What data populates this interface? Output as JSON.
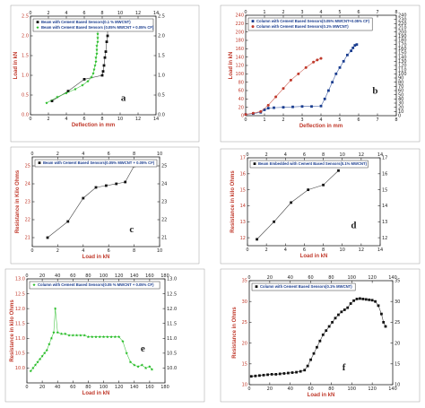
{
  "chart_data": [
    {
      "id": "a",
      "type": "scatter",
      "panel_label": "a",
      "xlabel": "Deflection in mm",
      "ylabel": "Load in kN",
      "xlim": [
        0,
        14
      ],
      "ylim": [
        0,
        2.5
      ],
      "xticks": [
        0,
        2,
        4,
        6,
        8,
        10,
        12,
        14
      ],
      "yticks": [
        0.0,
        0.5,
        1.0,
        1.5,
        2.0,
        2.5
      ],
      "ytick_labels": [
        "0.0",
        "0.5",
        "1.0",
        "1.5",
        "2.0",
        "2.5"
      ],
      "top_ticks": [
        0,
        2,
        4,
        6,
        8,
        10,
        12,
        14
      ],
      "right_ticks": [
        0.0,
        0.5,
        1.0,
        1.5,
        2.0,
        2.5
      ],
      "right_tick_labels": [
        "0.0",
        "0.5",
        "1.0",
        "1.5",
        "2.0",
        "2.5"
      ],
      "legend": [
        {
          "label": "Beam with Cement Based Sensors(0.1 % MWCNT)",
          "color": "#111111"
        },
        {
          "label": "Beam with Cement Based Sensors (0.05% MWCNT + 0.05% CF)",
          "color": "#22bb22"
        }
      ],
      "series": [
        {
          "name": "Beam with Cement Based Sensors(0.1 % MWCNT)",
          "color": "#111111",
          "marker": "square",
          "x": [
            2.4,
            4.2,
            6.0,
            8.0,
            8.1,
            8.2,
            8.3,
            8.4,
            8.5,
            8.6,
            8.6
          ],
          "y": [
            0.35,
            0.6,
            0.9,
            1.0,
            1.1,
            1.25,
            1.45,
            1.6,
            1.85,
            2.0,
            2.15
          ]
        },
        {
          "name": "Beam with Cement Based Sensors (0.05% MWCNT + 0.05% CF)",
          "color": "#22bb22",
          "marker": "star",
          "x": [
            1.8,
            3.0,
            4.0,
            5.0,
            5.8,
            6.4,
            6.8,
            7.0,
            7.1,
            7.2,
            7.3,
            7.3,
            7.4,
            7.4,
            7.4,
            7.5,
            7.5,
            7.5,
            7.5
          ],
          "y": [
            0.3,
            0.45,
            0.55,
            0.65,
            0.75,
            0.85,
            0.95,
            1.05,
            1.15,
            1.25,
            1.35,
            1.45,
            1.55,
            1.65,
            1.75,
            1.85,
            1.95,
            2.05,
            2.2
          ]
        }
      ]
    },
    {
      "id": "b",
      "type": "scatter",
      "panel_label": "b",
      "xlabel": "Deflection in mm",
      "ylabel": "Load in kN",
      "xlim": [
        0,
        8
      ],
      "ylim": [
        0,
        240
      ],
      "xticks": [
        0,
        1,
        2,
        3,
        4,
        5,
        6,
        7,
        8
      ],
      "yticks": [
        0,
        20,
        40,
        60,
        80,
        100,
        120,
        140,
        160,
        180,
        200,
        220,
        240
      ],
      "ytick_labels": [
        "0",
        "20",
        "40",
        "60",
        "80",
        "100",
        "120",
        "140",
        "160",
        "180",
        "200",
        "220",
        "240"
      ],
      "top_ticks": [
        0,
        1,
        2,
        3,
        4,
        5,
        6,
        7,
        8
      ],
      "right_ticks": [
        0,
        10,
        20,
        30,
        40,
        50,
        60,
        70,
        80,
        90,
        100,
        110,
        120,
        130,
        140,
        150,
        160,
        170,
        180,
        190,
        200,
        210,
        220,
        230,
        240
      ],
      "right_tick_labels": [
        "0",
        "10",
        "20",
        "30",
        "40",
        "50",
        "60",
        "70",
        "80",
        "90",
        "100",
        "110",
        "120",
        "130",
        "140",
        "150",
        "160",
        "170",
        "180",
        "190",
        "200",
        "210",
        "220",
        "230",
        "240"
      ],
      "legend": [
        {
          "label": "Column with Cement Based Sensors(0.05% MWCNT+0.05% CF)",
          "color": "#1a3d8f"
        },
        {
          "label": "Column with Cement Based Sensors(0.1% MWCNT)",
          "color": "#c0392b"
        }
      ],
      "series": [
        {
          "name": "Column with Cement Based Sensors(0.05% MWCNT+0.05% CF)",
          "color": "#1a3d8f",
          "marker": "square",
          "x": [
            0.0,
            0.4,
            0.8,
            1.0,
            1.2,
            1.5,
            2.0,
            2.5,
            3.0,
            3.5,
            4.0,
            4.2,
            4.4,
            4.6,
            4.8,
            5.0,
            5.2,
            5.4,
            5.6,
            5.7,
            5.8,
            5.9
          ],
          "y": [
            3,
            5,
            8,
            14,
            18,
            19,
            20,
            21,
            22,
            22,
            23,
            40,
            60,
            80,
            100,
            115,
            130,
            145,
            155,
            162,
            168,
            170
          ]
        },
        {
          "name": "Column with Cement Based Sensors(0.1% MWCNT)",
          "color": "#c0392b",
          "marker": "circle",
          "x": [
            0.0,
            0.4,
            0.8,
            1.2,
            1.6,
            2.0,
            2.4,
            2.8,
            3.2,
            3.6,
            3.8,
            4.0
          ],
          "y": [
            3,
            6,
            10,
            25,
            45,
            65,
            85,
            100,
            115,
            128,
            133,
            137
          ]
        }
      ]
    },
    {
      "id": "c",
      "type": "line",
      "panel_label": "c",
      "xlabel": "Load in kN",
      "ylabel": "Resistance in Kilo Ohms",
      "xlim": [
        0,
        10
      ],
      "ylim": [
        20.5,
        25.5
      ],
      "xticks": [
        0,
        2,
        4,
        6,
        8,
        10
      ],
      "yticks": [
        21,
        22,
        23,
        24,
        25
      ],
      "ytick_labels": [
        "21",
        "22",
        "23",
        "24",
        "25"
      ],
      "top_ticks": [
        0,
        2,
        4,
        6,
        8,
        10
      ],
      "right_ticks": [
        21,
        22,
        23,
        24,
        25
      ],
      "right_tick_labels": [
        "21",
        "22",
        "23",
        "24",
        "25"
      ],
      "legend": [
        {
          "label": "Beam with Cement Based Sensors(0.05% MWCNT + 0.05% CF)",
          "color": "#111111"
        }
      ],
      "series": [
        {
          "name": "Beam with Cement Based Sensors(0.05% MWCNT + 0.05% CF)",
          "color": "#111111",
          "marker": "square",
          "x": [
            1.2,
            2.8,
            4.0,
            5.0,
            5.8,
            6.6,
            7.3,
            8.0
          ],
          "y": [
            21.0,
            21.9,
            23.2,
            23.8,
            23.9,
            24.0,
            24.1,
            25.0
          ]
        }
      ]
    },
    {
      "id": "d",
      "type": "line",
      "panel_label": "d",
      "xlabel": "Load in kN",
      "ylabel": "Resistance in kilo Ohms",
      "xlim": [
        0,
        14
      ],
      "ylim": [
        11.5,
        17
      ],
      "xticks": [
        0,
        2,
        4,
        6,
        8,
        10,
        12,
        14
      ],
      "yticks": [
        12,
        13,
        14,
        15,
        16,
        17
      ],
      "ytick_labels": [
        "12",
        "13",
        "14",
        "15",
        "16",
        "17"
      ],
      "top_ticks": [
        0,
        2,
        4,
        6,
        8,
        10,
        12,
        14
      ],
      "right_ticks": [
        12,
        13,
        14,
        15,
        16,
        17
      ],
      "right_tick_labels": [
        "12",
        "13",
        "14",
        "15",
        "16",
        "17"
      ],
      "legend": [
        {
          "label": "Beam Embedded with Cement Based Sensors(0.1% MWCNT)",
          "color": "#111111"
        }
      ],
      "series": [
        {
          "name": "Beam Embedded with Cement Based Sensors(0.1% MWCNT)",
          "color": "#111111",
          "marker": "square",
          "x": [
            1.0,
            2.8,
            4.6,
            6.4,
            8.0,
            9.6
          ],
          "y": [
            11.9,
            13.0,
            14.2,
            15.0,
            15.3,
            16.2
          ]
        }
      ]
    },
    {
      "id": "e",
      "type": "line",
      "panel_label": "e",
      "xlabel": "Load in kN",
      "ylabel": "Resistance in kilo Ohms",
      "xlim": [
        0,
        180
      ],
      "ylim": [
        9.5,
        13.0
      ],
      "xticks": [
        0,
        20,
        40,
        60,
        80,
        100,
        120,
        140,
        160,
        180
      ],
      "yticks": [
        10.0,
        10.5,
        11.0,
        11.5,
        12.0,
        12.5,
        13.0
      ],
      "ytick_labels": [
        "10.0",
        "10.5",
        "11.0",
        "11.5",
        "12.0",
        "12.5",
        "13.0"
      ],
      "top_ticks": [
        0,
        20,
        40,
        60,
        80,
        100,
        120,
        140,
        160,
        180
      ],
      "right_ticks": [
        10.0,
        10.5,
        11.0,
        11.5,
        12.0,
        12.5,
        13.0
      ],
      "right_tick_labels": [
        "10.0",
        "10.5",
        "11.0",
        "11.5",
        "12.0",
        "12.5",
        "13.0"
      ],
      "legend": [
        {
          "label": "Column with Cement Based Sensors(0.05 % MWCNT + 0.05% CF)",
          "color": "#22bb22"
        }
      ],
      "series": [
        {
          "name": "Column with Cement Based Sensors(0.05 % MWCNT + 0.05% CF)",
          "color": "#22bb22",
          "marker": "star",
          "x": [
            5,
            8,
            11,
            14,
            17,
            20,
            23,
            26,
            29,
            32,
            35,
            37,
            40,
            45,
            50,
            55,
            60,
            65,
            70,
            75,
            80,
            85,
            90,
            95,
            100,
            105,
            110,
            115,
            120,
            125,
            130,
            135,
            140,
            145,
            150,
            155,
            160,
            163
          ],
          "y": [
            9.9,
            10.0,
            10.1,
            10.2,
            10.3,
            10.4,
            10.5,
            10.6,
            10.8,
            11.0,
            11.2,
            12.0,
            11.2,
            11.15,
            11.15,
            11.1,
            11.1,
            11.1,
            11.1,
            11.1,
            11.05,
            11.05,
            11.05,
            11.05,
            11.05,
            11.05,
            11.05,
            11.05,
            11.05,
            10.9,
            10.5,
            10.2,
            10.1,
            10.05,
            10.1,
            10.0,
            10.05,
            9.95
          ]
        }
      ]
    },
    {
      "id": "f",
      "type": "scatter",
      "panel_label": "f",
      "xlabel": "Load in kN",
      "ylabel": "Resistance in Ohms",
      "xlim": [
        0,
        140
      ],
      "ylim": [
        10,
        35
      ],
      "xticks": [
        0,
        20,
        40,
        60,
        80,
        100,
        120,
        140
      ],
      "yticks": [
        10,
        15,
        20,
        25,
        30,
        35
      ],
      "ytick_labels": [
        "10",
        "15",
        "20",
        "25",
        "30",
        "35"
      ],
      "top_ticks": [
        0,
        20,
        40,
        60,
        80,
        100,
        120,
        140
      ],
      "right_ticks": [
        10,
        15,
        20,
        25,
        30,
        35
      ],
      "right_tick_labels": [
        "10",
        "15",
        "20",
        "25",
        "30",
        "35"
      ],
      "legend": [
        {
          "label": "Column with Cement Based Sensors(0.1% MWCNT)",
          "color": "#111111"
        }
      ],
      "series": [
        {
          "name": "Column with Cement Based Sensors(0.1% MWCNT)",
          "color": "#111111",
          "marker": "square",
          "x": [
            2,
            6,
            10,
            14,
            18,
            22,
            26,
            30,
            34,
            38,
            42,
            46,
            50,
            54,
            57,
            60,
            63,
            66,
            69,
            72,
            75,
            78,
            81,
            84,
            87,
            90,
            93,
            96,
            99,
            102,
            105,
            108,
            111,
            114,
            117,
            120,
            123,
            126,
            129,
            131,
            133
          ],
          "y": [
            12.0,
            12.1,
            12.2,
            12.3,
            12.4,
            12.5,
            12.5,
            12.6,
            12.7,
            12.8,
            12.9,
            13.0,
            13.2,
            13.5,
            14.5,
            16.0,
            17.5,
            19.0,
            20.5,
            22.0,
            23.0,
            24.0,
            25.0,
            26.0,
            26.8,
            27.5,
            28.0,
            28.5,
            29.5,
            30.2,
            30.6,
            30.7,
            30.6,
            30.5,
            30.4,
            30.3,
            30.0,
            29.0,
            27.0,
            25.0,
            24.0
          ]
        }
      ]
    }
  ]
}
